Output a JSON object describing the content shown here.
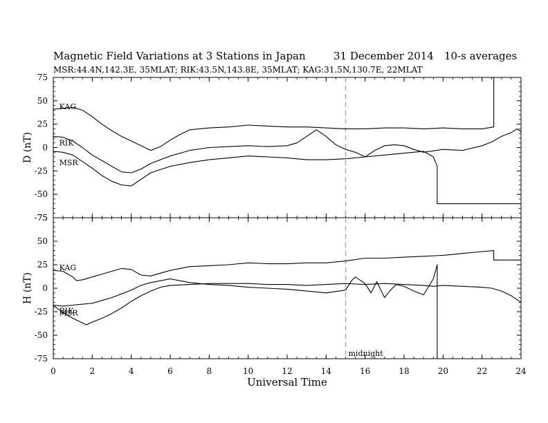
{
  "chart_data": {
    "type": "line",
    "title": "Magnetic Field Variations at 3 Stations in Japan",
    "date": "31 December 2014",
    "averaging": "10-s averages",
    "subtitle": "MSR:44.4N,142.3E, 35MLAT;  RIK:43.5N,143.8E, 35MLAT;  KAG:31.5N,130.7E, 22MLAT",
    "xlabel": "Universal Time",
    "xlim": [
      0,
      24
    ],
    "xticks": [
      0,
      2,
      4,
      6,
      8,
      10,
      12,
      14,
      16,
      18,
      20,
      22,
      24
    ],
    "annotation": {
      "text": "midnight",
      "x": 15
    },
    "panels": [
      {
        "component": "D",
        "ylabel": "D (nT)",
        "ylim": [
          -75,
          75
        ],
        "yticks": [
          -75,
          -50,
          -25,
          0,
          25,
          50,
          75
        ],
        "series": [
          {
            "name": "KAG",
            "x": [
              0,
              1,
              1.5,
              2,
              2.5,
              3,
              3.5,
              4,
              4.5,
              5,
              5.5,
              6,
              6.5,
              7,
              8,
              9,
              10,
              11,
              12,
              13,
              14,
              15,
              16,
              17,
              18,
              19,
              20,
              21,
              22,
              22.6,
              22.6,
              24
            ],
            "y": [
              41,
              43,
              40,
              33,
              25,
              18,
              12,
              7,
              2,
              -3,
              1,
              8,
              14,
              19,
              21,
              22,
              24,
              23,
              22,
              22,
              21,
              20,
              20,
              21,
              21,
              20,
              21,
              20,
              20,
              22,
              75,
              75
            ]
          },
          {
            "name": "RIK",
            "x": [
              0,
              0.5,
              1,
              1.5,
              2,
              2.5,
              3,
              3.5,
              4,
              4.5,
              5,
              6,
              7,
              8,
              9,
              10,
              11,
              12,
              12.5,
              13,
              13.5,
              14,
              14.5,
              15,
              15.5,
              16,
              16.5,
              17,
              17.5,
              18,
              18.5,
              19,
              20,
              21,
              22,
              22.5,
              23,
              23.5,
              23.8,
              24
            ],
            "y": [
              12,
              11,
              7,
              0,
              -8,
              -14,
              -20,
              -26,
              -27,
              -23,
              -17,
              -9,
              -3,
              0,
              1,
              2,
              1,
              2,
              5,
              12,
              19,
              12,
              3,
              -2,
              -5,
              -10,
              -3,
              2,
              3,
              2,
              -2,
              -5,
              -2,
              -3,
              2,
              6,
              12,
              16,
              20,
              17
            ]
          },
          {
            "name": "MSR",
            "x": [
              0,
              0.5,
              1,
              1.5,
              2,
              2.5,
              3,
              3.5,
              4,
              5,
              6,
              7,
              8,
              9,
              10,
              11,
              12,
              13,
              14,
              15,
              16,
              17,
              18,
              19,
              19.5,
              19.7,
              19.7,
              24
            ],
            "y": [
              -4,
              -5,
              -8,
              -15,
              -22,
              -30,
              -36,
              -40,
              -41,
              -27,
              -20,
              -16,
              -13,
              -11,
              -9,
              -10,
              -11,
              -13,
              -13,
              -12,
              -10,
              -8,
              -6,
              -4,
              -10,
              -20,
              -60,
              -60
            ]
          }
        ],
        "labels": [
          {
            "text": "KAG",
            "x": 0.2,
            "y": 44
          },
          {
            "text": "RIK",
            "x": 0.2,
            "y": 5
          },
          {
            "text": "MSR",
            "x": 0.2,
            "y": -16
          }
        ]
      },
      {
        "component": "H",
        "ylabel": "H (nT)",
        "ylim": [
          -75,
          75
        ],
        "yticks": [
          -75,
          -50,
          -25,
          0,
          25,
          50,
          75
        ],
        "series": [
          {
            "name": "KAG",
            "x": [
              0,
              0.5,
              1,
              1.2,
              1.5,
              2,
              2.5,
              3,
              3.5,
              4,
              4.5,
              5,
              6,
              7,
              8,
              9,
              10,
              11,
              12,
              13,
              14,
              15,
              16,
              17,
              18,
              19,
              20,
              21,
              22,
              22.6,
              22.6,
              24
            ],
            "y": [
              19,
              18,
              12,
              8,
              9,
              12,
              15,
              18,
              21,
              20,
              14,
              13,
              19,
              23,
              24,
              25,
              27,
              26,
              26,
              27,
              27,
              29,
              32,
              32,
              33,
              34,
              35,
              37,
              39,
              40,
              30,
              30
            ]
          },
          {
            "name": "RIK",
            "x": [
              0,
              0.5,
              1,
              1.5,
              2,
              2.5,
              3,
              3.5,
              4,
              4.5,
              5,
              6,
              7,
              8,
              9,
              10,
              11,
              12,
              13,
              14,
              15,
              15.3,
              15.5,
              16,
              16.3,
              16.6,
              17,
              17.3,
              17.6,
              18,
              18.5,
              19,
              19.5,
              19.7,
              19.7,
              24
            ],
            "y": [
              -18,
              -19,
              -18,
              -17,
              -16,
              -13,
              -10,
              -6,
              -2,
              3,
              6,
              10,
              6,
              4,
              3,
              1,
              0,
              -1,
              -3,
              -5,
              -2,
              8,
              12,
              5,
              -5,
              7,
              -10,
              -2,
              4,
              2,
              -3,
              -7,
              10,
              25,
              -75,
              -75
            ]
          },
          {
            "name": "MSR",
            "x": [
              0,
              0.5,
              1,
              1.5,
              1.7,
              2,
              2.5,
              3,
              3.5,
              4,
              4.5,
              5,
              5.5,
              6,
              7,
              8,
              9,
              10,
              11,
              12,
              13,
              14,
              15,
              16,
              17,
              18,
              19,
              19.5,
              20,
              21,
              22,
              22.5,
              23,
              23.5,
              24
            ],
            "y": [
              -18,
              -26,
              -32,
              -37,
              -39,
              -36,
              -32,
              -27,
              -21,
              -14,
              -8,
              -3,
              1,
              3,
              4,
              5,
              5,
              5,
              4,
              4,
              3,
              4,
              5,
              4,
              5,
              4,
              3,
              2,
              3,
              2,
              1,
              0,
              -3,
              -8,
              -15
            ]
          }
        ],
        "labels": [
          {
            "text": "KAG",
            "x": 0.2,
            "y": 22
          },
          {
            "text": "RIK",
            "x": 0.2,
            "y": -24
          },
          {
            "text": "MSR",
            "x": 0.2,
            "y": -26
          }
        ]
      }
    ]
  }
}
